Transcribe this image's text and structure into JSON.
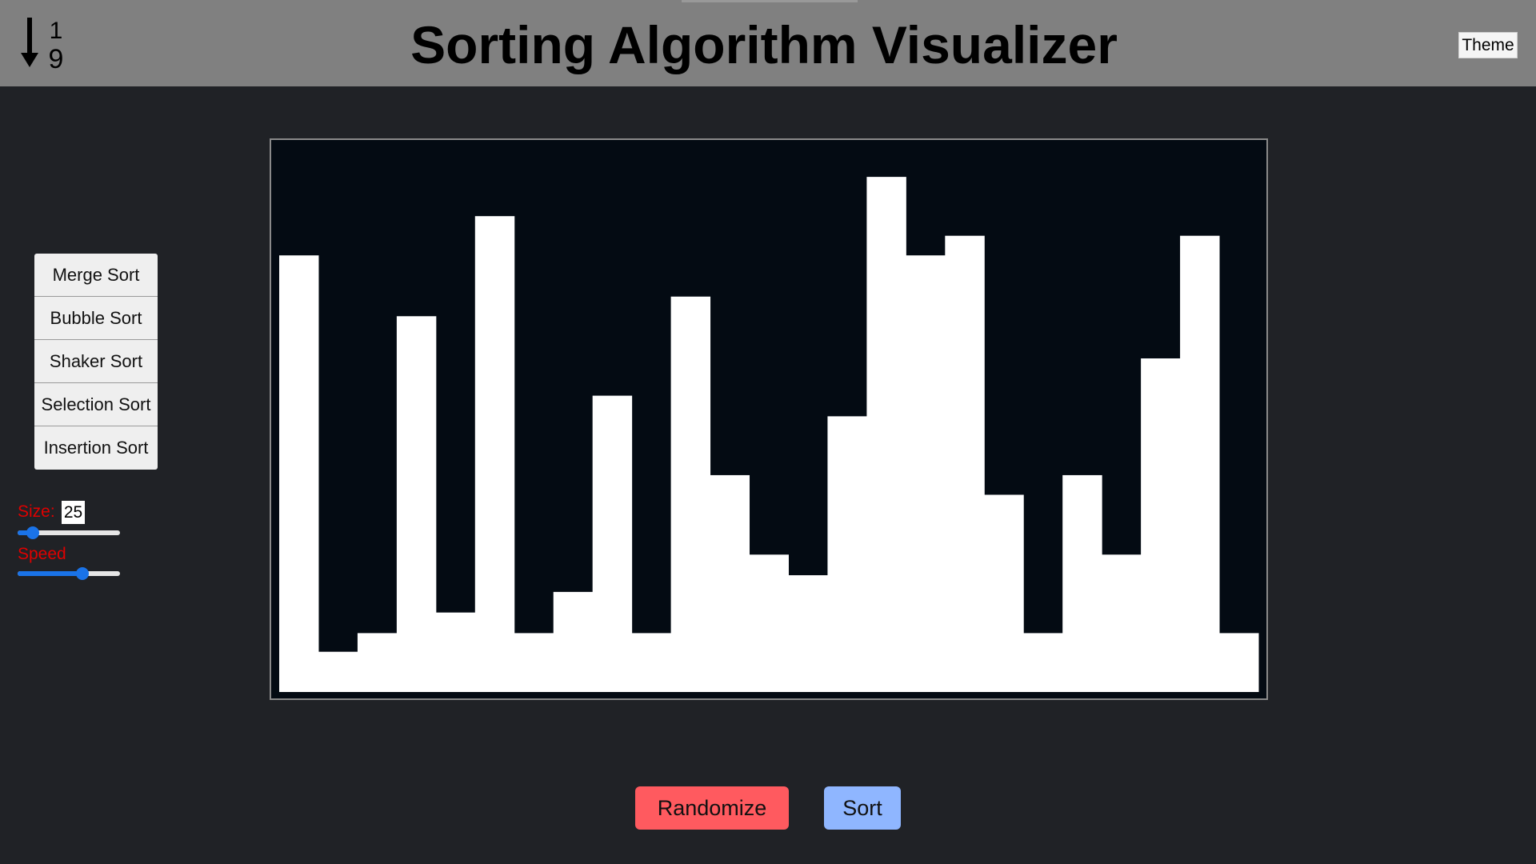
{
  "header": {
    "title": "Sorting Algorithm Visualizer",
    "logo_icon": "sort-numeric-down-icon",
    "logo_top_digit": "1",
    "logo_bottom_digit": "9",
    "theme_label": "Theme"
  },
  "algorithms": [
    {
      "label": "Merge Sort"
    },
    {
      "label": "Bubble Sort"
    },
    {
      "label": "Shaker Sort"
    },
    {
      "label": "Selection Sort"
    },
    {
      "label": "Insertion Sort"
    }
  ],
  "controls": {
    "size_label": "Size:",
    "size_value": "25",
    "size_fraction": 0.1,
    "speed_label": "Speed",
    "speed_fraction": 0.65
  },
  "chart_data": {
    "type": "bar",
    "bar_color": "#ffffff",
    "background": "#040b13",
    "values": [
      423,
      19,
      38,
      361,
      59,
      463,
      38,
      80,
      280,
      38,
      381,
      199,
      118,
      97,
      259,
      503,
      423,
      443,
      179,
      38,
      199,
      118,
      318,
      443,
      38
    ],
    "ylim": [
      0,
      530
    ]
  },
  "actions": {
    "randomize_label": "Randomize",
    "sort_label": "Sort"
  },
  "colors": {
    "header_bg": "#808080",
    "page_bg": "#202226",
    "label_red": "#e00000",
    "slider_blue": "#1a73e8",
    "randomize_bg": "#ff5a5f",
    "sort_bg": "#8fb6ff"
  }
}
